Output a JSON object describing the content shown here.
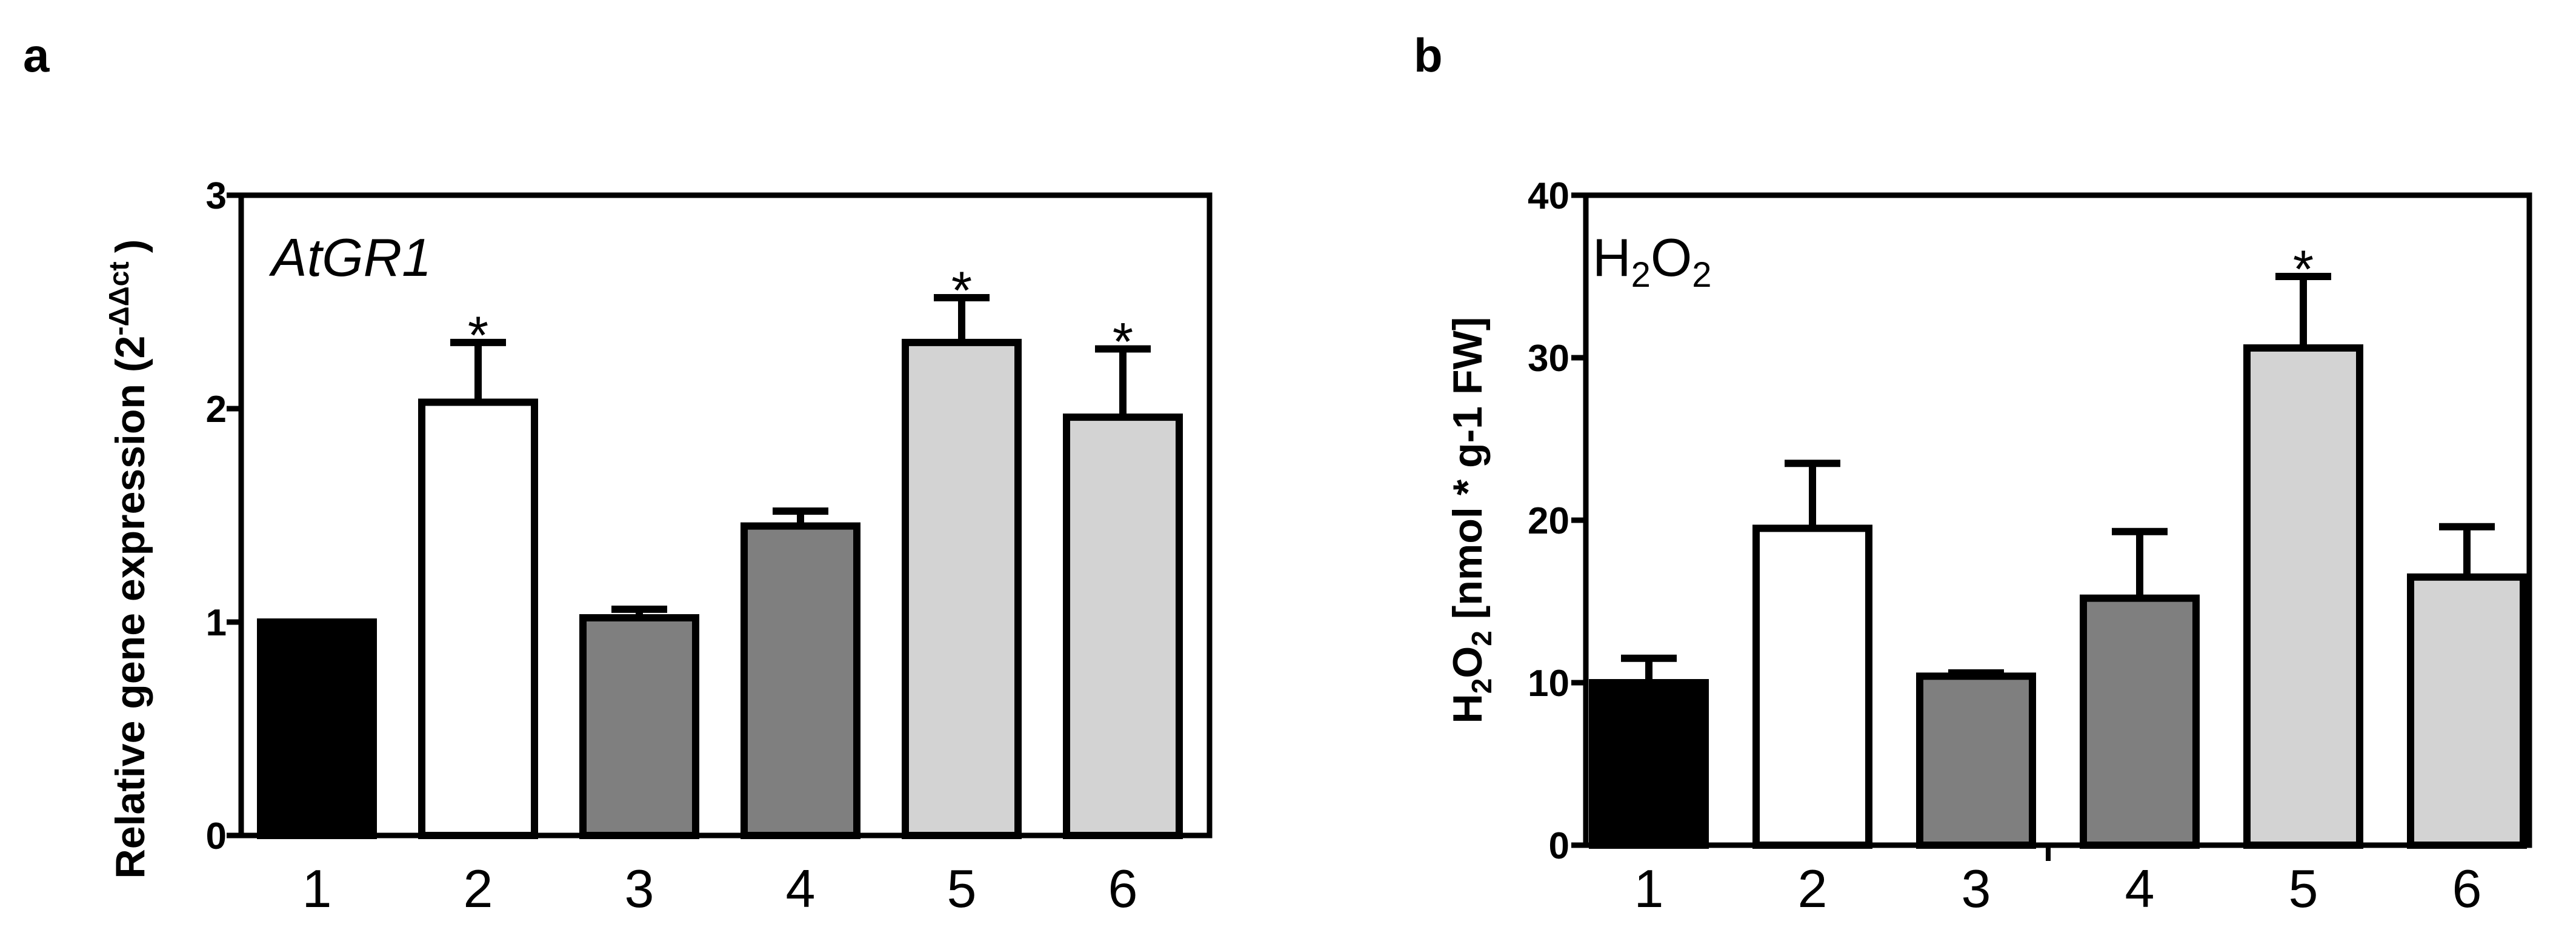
{
  "charts": [
    {
      "panel_label": "a",
      "inset_label": "AtGR1",
      "ylabel": {
        "main": "Relative gene expression (2",
        "sup": "-ΔΔct",
        "close": ")"
      },
      "chart_data": {
        "type": "bar",
        "categories": [
          "1",
          "2",
          "3",
          "4",
          "5",
          "6"
        ],
        "values": [
          1.0,
          2.03,
          1.02,
          1.45,
          2.31,
          1.96
        ],
        "errors": [
          0.0,
          0.28,
          0.04,
          0.07,
          0.21,
          0.32
        ],
        "significant": [
          "",
          "*",
          "",
          "",
          "*",
          "*"
        ],
        "fills": [
          "#000000",
          "#ffffff",
          "#7f7f7f",
          "#7f7f7f",
          "#d3d3d3",
          "#d3d3d3"
        ],
        "ylim": [
          0,
          3
        ],
        "yticks": [
          "0",
          "1",
          "2",
          "3"
        ],
        "ytick_values": [
          0,
          1,
          2,
          3
        ],
        "xlabel": ""
      }
    },
    {
      "panel_label": "b",
      "inset_label": {
        "h": "H",
        "sub1": "2",
        "o": "O",
        "sub2": "2"
      },
      "ylabel": {
        "h": "H",
        "sub1": "2",
        "o": "O",
        "sub2": "2",
        "rest": " [nmol * g-1 FW]"
      },
      "chart_data": {
        "type": "bar",
        "categories": [
          "1",
          "2",
          "3",
          "4",
          "5",
          "6"
        ],
        "values": [
          10.0,
          19.5,
          10.4,
          15.2,
          30.6,
          16.5
        ],
        "errors": [
          1.5,
          4.0,
          0.2,
          4.1,
          4.4,
          3.1
        ],
        "significant": [
          "",
          "",
          "",
          "",
          "*",
          ""
        ],
        "fills": [
          "#000000",
          "#ffffff",
          "#7f7f7f",
          "#7f7f7f",
          "#d3d3d3",
          "#d3d3d3"
        ],
        "ylim": [
          0,
          40
        ],
        "yticks": [
          "0",
          "10",
          "20",
          "30",
          "40"
        ],
        "ytick_values": [
          0,
          10,
          20,
          30,
          40
        ],
        "xlabel": ""
      }
    }
  ]
}
